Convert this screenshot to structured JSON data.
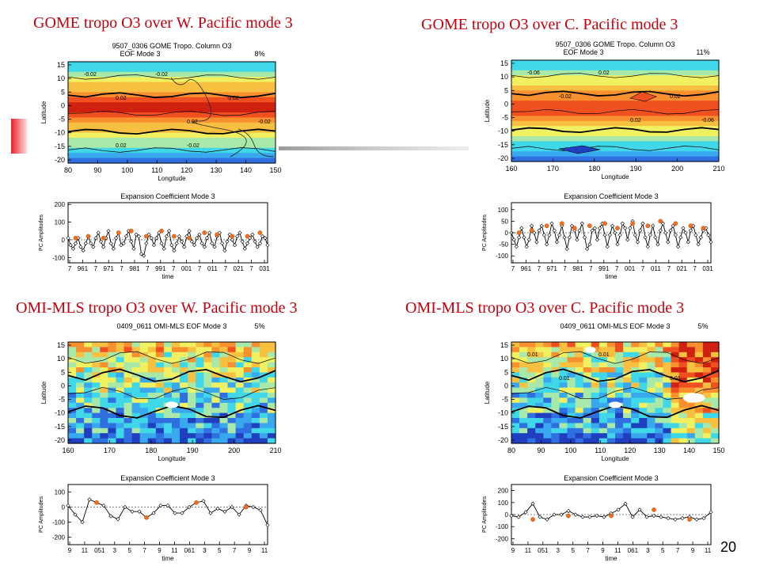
{
  "slide": {
    "page_number": "20"
  },
  "panels": [
    {
      "title": "GOME tropo O3 over W. Pacific  mode 3",
      "map": {
        "heading1": "9507_0306 GOME Tropo. Column O3",
        "heading2": "EOF Mode 3",
        "percent": "8%",
        "xlabel": "Longitude",
        "ylabel": "Latitude",
        "xticks": [
          "80",
          "90",
          "100",
          "110",
          "120",
          "130",
          "140",
          "150"
        ],
        "yticks": [
          "15",
          "10",
          "5",
          "0",
          "-5",
          "-10",
          "-15",
          "-20"
        ],
        "contours": [
          "-0.02",
          "-0.02",
          "-0.02",
          "0.02",
          "0.02",
          "-0.02",
          "0.02",
          "-0.02"
        ],
        "style": "smooth"
      },
      "ts": {
        "title": "Expansion Coefficient Mode 3",
        "ylabel": "PC Amplitudes",
        "xlabel": "time",
        "xticks": [
          "7",
          "961",
          "7",
          "971",
          "7",
          "981",
          "7",
          "991",
          "7",
          "001",
          "7",
          "011",
          "7",
          "021",
          "7",
          "031"
        ],
        "yticks": [
          "200",
          "100",
          "0",
          "-100"
        ]
      }
    },
    {
      "title": "GOME tropo O3 over C. Pacific mode 3",
      "map": {
        "heading1": "9507_0306 GOME Tropo. Column O3",
        "heading2": "EOF Mode 3",
        "percent": "11%",
        "xlabel": "Longitude",
        "ylabel": "Latitude",
        "xticks": [
          "160",
          "170",
          "180",
          "190",
          "200",
          "210"
        ],
        "yticks": [
          "15",
          "10",
          "5",
          "0",
          "-5",
          "-10",
          "-15",
          "-20"
        ],
        "contours": [
          "-0.06",
          "0.02",
          "0.02",
          "-0.02",
          "0.02",
          "-0.06"
        ],
        "style": "smooth2"
      },
      "ts": {
        "title": "Expansion Coefficient Mode 3",
        "ylabel": "PC Amplitudes",
        "xlabel": "time",
        "xticks": [
          "7",
          "961",
          "7",
          "971",
          "7",
          "981",
          "7",
          "991",
          "7",
          "001",
          "7",
          "011",
          "7",
          "021",
          "7",
          "031"
        ],
        "yticks": [
          "100",
          "50",
          "0",
          "-50",
          "-100"
        ]
      }
    },
    {
      "title": "OMI-MLS tropo O3 over W. Pacific mode 3",
      "map": {
        "heading1": "0409_0611 OMI-MLS EOF Mode 3",
        "heading2": "",
        "percent": "5%",
        "xlabel": "Longitude",
        "ylabel": "Latitude",
        "xticks": [
          "160",
          "170",
          "180",
          "190",
          "200",
          "210"
        ],
        "yticks": [
          "15",
          "10",
          "5",
          "0",
          "-5",
          "-10",
          "-15",
          "-20"
        ],
        "contours": [],
        "style": "noisy"
      },
      "ts": {
        "title": "Expansion Coefficient Mode 3",
        "ylabel": "PC Amplitudes",
        "xlabel": "time",
        "xticks": [
          "9",
          "11",
          "051",
          "3",
          "5",
          "7",
          "9",
          "11",
          "061",
          "3",
          "5",
          "7",
          "9",
          "11"
        ],
        "yticks": [
          "100",
          "0",
          "-100",
          "-200"
        ]
      }
    },
    {
      "title": "OMI-MLS tropo O3 over C. Pacific mode 3",
      "map": {
        "heading1": "0409_0611 OMI-MLS EOF Mode 3",
        "heading2": "",
        "percent": "5%",
        "xlabel": "Longitude",
        "ylabel": "Latitude",
        "xticks": [
          "80",
          "90",
          "100",
          "110",
          "120",
          "130",
          "140",
          "150"
        ],
        "yticks": [
          "15",
          "10",
          "5",
          "0",
          "-5",
          "-10",
          "-15",
          "-20"
        ],
        "contours": [
          "0.01",
          "0.01",
          "0.01",
          "0.01"
        ],
        "style": "noisy2"
      },
      "ts": {
        "title": "Expansion Coefficient Mode 3",
        "ylabel": "PC Amplitudes",
        "xlabel": "time",
        "xticks": [
          "9",
          "11",
          "051",
          "3",
          "5",
          "7",
          "9",
          "11",
          "061",
          "3",
          "5",
          "7",
          "9",
          "11"
        ],
        "yticks": [
          "200",
          "100",
          "0",
          "-100",
          "-200"
        ]
      }
    }
  ],
  "chart_data": [
    {
      "type": "line",
      "title": "Expansion Coefficient Mode 3",
      "panel": "GOME tropo O3 over W. Pacific  mode 3",
      "xlabel": "time",
      "ylabel": "PC Amplitudes",
      "ylim": [
        -130,
        210
      ],
      "series": [
        {
          "values": [
            10,
            -30,
            -50,
            -20,
            10,
            -40,
            -60,
            -20,
            20,
            -20,
            -40,
            10,
            40,
            -10,
            -40,
            10,
            50,
            -20,
            -50,
            10,
            40,
            -30,
            -20,
            20,
            50,
            -10,
            -50,
            30,
            20,
            -80,
            -90,
            -20,
            30,
            10,
            -30,
            10,
            40,
            -20,
            -50,
            20,
            50,
            -30,
            -60,
            -20,
            20,
            -10,
            -40,
            20,
            50,
            -10,
            -30,
            10,
            30,
            -20,
            -40,
            10,
            40,
            -20,
            -40,
            20,
            40,
            -20,
            -60,
            -10,
            30,
            0,
            -30,
            20,
            40,
            -10,
            -50,
            -20,
            10,
            30,
            -10,
            -40,
            -20,
            20,
            10,
            -30
          ]
        }
      ],
      "highlighted_values": [
        10,
        20,
        10,
        40,
        50,
        20,
        50,
        20,
        10,
        40,
        30,
        20,
        20,
        40
      ]
    },
    {
      "type": "line",
      "title": "Expansion Coefficient Mode 3",
      "panel": "GOME tropo O3 over C. Pacific mode 3",
      "xlabel": "time",
      "ylabel": "PC Amplitudes",
      "ylim": [
        -130,
        130
      ],
      "series": [
        {
          "values": [
            0,
            -30,
            -60,
            -20,
            20,
            -20,
            -60,
            -30,
            30,
            0,
            -40,
            10,
            30,
            -10,
            -50,
            -10,
            40,
            10,
            -40,
            -10,
            30,
            -20,
            -70,
            -20,
            30,
            10,
            -30,
            10,
            40,
            -20,
            -70,
            -50,
            10,
            20,
            -30,
            20,
            40,
            -10,
            -60,
            -10,
            30,
            0,
            -50,
            -10,
            40,
            20,
            -30,
            20,
            50,
            -10,
            -40,
            10,
            40,
            -20,
            -60,
            -10,
            30,
            -20,
            -50,
            10,
            40,
            0,
            -40,
            10,
            30,
            -10,
            -60,
            -20,
            20,
            0,
            -40,
            10,
            30,
            -10,
            -50,
            -20,
            10,
            20,
            -10,
            -40
          ]
        }
      ],
      "highlighted_values": [
        0,
        10,
        30,
        40,
        20,
        30,
        40,
        20,
        40,
        30,
        50,
        40,
        30,
        20
      ]
    },
    {
      "type": "line",
      "title": "Expansion Coefficient Mode 3",
      "panel": "OMI-MLS tropo O3 over W. Pacific mode 3",
      "xlabel": "time",
      "ylabel": "PC Amplitudes",
      "ylim": [
        -250,
        150
      ],
      "series": [
        {
          "values": [
            10,
            -50,
            -100,
            50,
            30,
            10,
            -60,
            -80,
            0,
            -30,
            -30,
            -70,
            -40,
            10,
            10,
            -40,
            -40,
            0,
            30,
            40,
            -40,
            -10,
            -30,
            0,
            -50,
            10,
            0,
            -20,
            -120
          ]
        }
      ],
      "highlighted_values": [
        30,
        -70,
        30,
        0
      ]
    },
    {
      "type": "line",
      "title": "Expansion Coefficient Mode 3",
      "panel": "OMI-MLS tropo O3 over C. Pacific mode 3",
      "xlabel": "time",
      "ylabel": "PC Amplitudes",
      "ylim": [
        -250,
        250
      ],
      "series": [
        {
          "values": [
            -10,
            -20,
            20,
            90,
            -20,
            -40,
            0,
            0,
            30,
            0,
            -20,
            -20,
            -10,
            -20,
            10,
            40,
            90,
            -20,
            40,
            -20,
            -10,
            -20,
            -30,
            -40,
            -30,
            -20,
            -40,
            -30,
            20
          ]
        }
      ],
      "highlighted_values": [
        -40,
        -10,
        -10,
        40,
        -40
      ]
    }
  ]
}
